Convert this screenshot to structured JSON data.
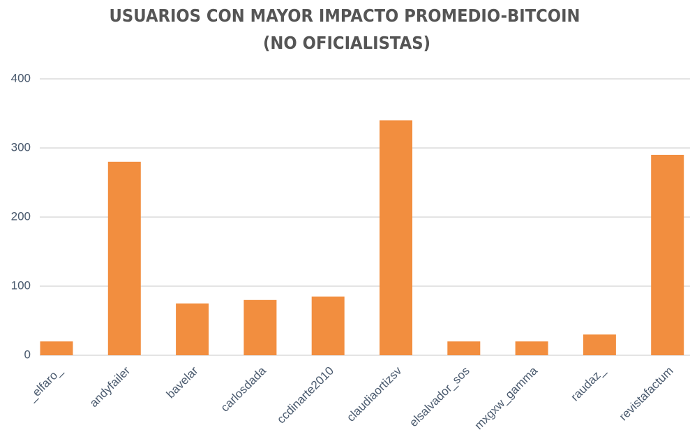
{
  "chart_data": {
    "type": "bar",
    "title": [
      "USUARIOS CON MAYOR IMPACTO PROMEDIO-BITCOIN",
      "(NO OFICIALISTAS)"
    ],
    "categories": [
      "_elfaro_",
      "andyfailer",
      "bavelar",
      "carlosdada",
      "ccdinarte2010",
      "claudiaortizsv",
      "elsalvador_sos",
      "mxgxw_gamma",
      "raudaz_",
      "revistafactum"
    ],
    "values": [
      20,
      280,
      75,
      80,
      85,
      340,
      20,
      20,
      30,
      290
    ],
    "color": "#f28e3f",
    "ylim": [
      0,
      400
    ],
    "yticks": [
      0,
      100,
      200,
      300,
      400
    ],
    "grid": true
  }
}
